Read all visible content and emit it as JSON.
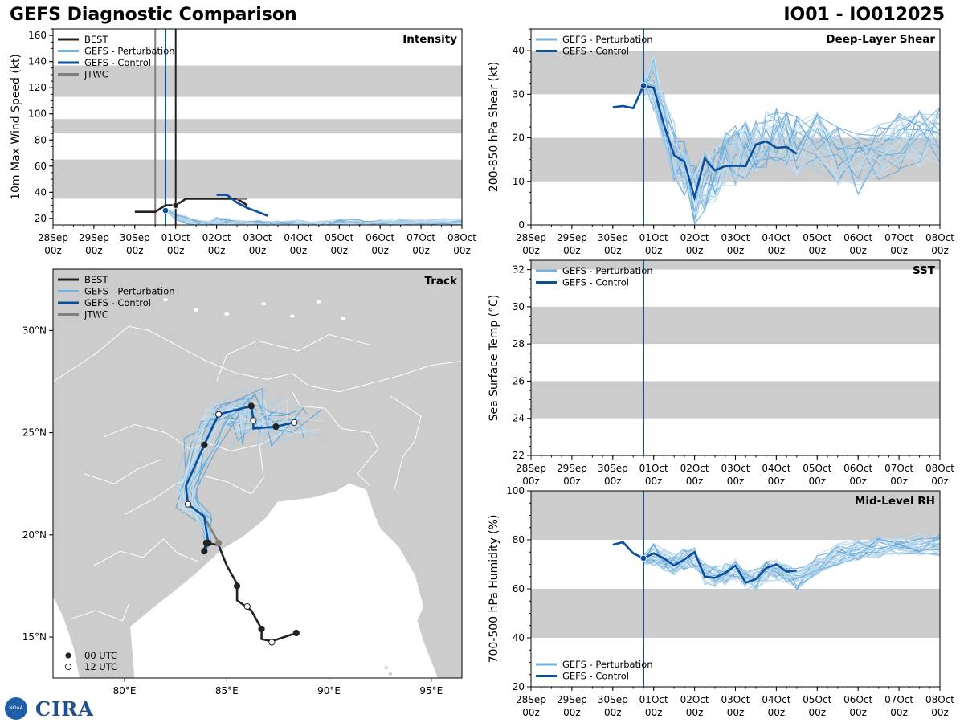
{
  "header": {
    "title": "GEFS Diagnostic Comparison",
    "storm": "IO01 - IO012025"
  },
  "logo": {
    "agency": "NOAA",
    "text": "CIRA"
  },
  "colors": {
    "best": "#222222",
    "pert": "#74b3dd",
    "control": "#0b4f9c",
    "jtwc": "#808080",
    "band": "#cccccc",
    "land": "#cccccc"
  },
  "time_axis": {
    "ticks": [
      "28Sep 00z",
      "29Sep 00z",
      "30Sep 00z",
      "01Oct 00z",
      "02Oct 00z",
      "03Oct 00z",
      "04Oct 00z",
      "05Oct 00z",
      "06Oct 00z",
      "07Oct 00z",
      "08Oct 00z"
    ],
    "marker_day": 2.75
  },
  "legend_labels": {
    "best": "BEST",
    "pert": "GEFS - Perturbation",
    "control": "GEFS - Control",
    "jtwc": "JTWC",
    "utc00": "00 UTC",
    "utc12": "12 UTC"
  },
  "chart_data": [
    {
      "id": "intensity",
      "type": "line",
      "title": "Intensity",
      "ylabel": "10m Max Wind Speed (kt)",
      "ylim": [
        15,
        165
      ],
      "yticks": [
        20,
        40,
        60,
        80,
        100,
        120,
        140,
        160
      ],
      "bands": [
        [
          35,
          65
        ],
        [
          85,
          96
        ],
        [
          113,
          137
        ]
      ],
      "vlines": [
        2.5,
        2.75,
        3.0
      ],
      "series": [
        {
          "name": "BEST",
          "x": [
            2.0,
            2.25,
            2.5,
            2.75,
            3.0,
            3.25,
            3.5,
            3.75,
            4.0,
            4.25,
            4.5,
            4.75
          ],
          "y": [
            25,
            25,
            25,
            30,
            30,
            35,
            35,
            35,
            35,
            35,
            35,
            30
          ]
        },
        {
          "name": "GEFS - Control",
          "x": [
            4.0,
            4.25,
            4.5,
            4.75,
            5.0,
            5.25
          ],
          "y": [
            38,
            38,
            32,
            28,
            25,
            22
          ]
        },
        {
          "name": "JTWC",
          "x": [
            4.5,
            4.75
          ],
          "y": [
            35,
            35
          ]
        }
      ]
    },
    {
      "id": "shear",
      "type": "line",
      "title": "Deep-Layer Shear",
      "ylabel": "200-850 hPa Shear (kt)",
      "ylim": [
        0,
        45
      ],
      "yticks": [
        0,
        10,
        20,
        30,
        40
      ],
      "bands": [
        [
          10,
          20
        ],
        [
          30,
          40
        ]
      ],
      "vlines": [
        2.75
      ],
      "series": [
        {
          "name": "GEFS - Control",
          "x": [
            2.0,
            2.25,
            2.5,
            2.75,
            3.0,
            3.25,
            3.5,
            3.75,
            4.0,
            4.25,
            4.5,
            4.75,
            5.0,
            5.25,
            5.5,
            5.75,
            6.0,
            6.25,
            6.5
          ],
          "y": [
            27,
            27.3,
            26.8,
            32,
            31.5,
            23,
            16,
            14.5,
            6.3,
            15.2,
            12.5,
            13.5,
            13.6,
            13.5,
            18.5,
            19.2,
            17.7,
            17.9,
            16.3
          ]
        }
      ]
    },
    {
      "id": "sst",
      "type": "line",
      "title": "SST",
      "ylabel": "Sea Surface Temp (°C)",
      "ylim": [
        22,
        32.5
      ],
      "yticks": [
        22,
        24,
        26,
        28,
        30,
        32
      ],
      "bands": [
        [
          24,
          26
        ],
        [
          28,
          30
        ],
        [
          32,
          32.5
        ]
      ],
      "vlines": [
        2.75
      ],
      "series": []
    },
    {
      "id": "rh",
      "type": "line",
      "title": "Mid-Level RH",
      "ylabel": "700-500 hPa Humidity (%)",
      "ylim": [
        20,
        100
      ],
      "yticks": [
        20,
        40,
        60,
        80,
        100
      ],
      "bands": [
        [
          40,
          60
        ],
        [
          80,
          100
        ]
      ],
      "vlines": [
        2.75
      ],
      "series": [
        {
          "name": "GEFS - Control",
          "x": [
            2.0,
            2.25,
            2.5,
            2.75,
            3.0,
            3.25,
            3.5,
            3.75,
            4.0,
            4.25,
            4.5,
            4.75,
            5.0,
            5.25,
            5.5,
            5.75,
            6.0,
            6.25,
            6.5
          ],
          "y": [
            78,
            79,
            74.5,
            72.5,
            74.5,
            72.5,
            69.5,
            72,
            75,
            65,
            64.5,
            66.5,
            69.5,
            62.5,
            64,
            68.5,
            70,
            67,
            67.5
          ]
        }
      ]
    },
    {
      "id": "track",
      "type": "scatter",
      "title": "Track",
      "lon_range": [
        76.5,
        96.5
      ],
      "lat_range": [
        13,
        33
      ],
      "xticks": [
        80,
        85,
        90,
        95
      ],
      "xtick_labels": [
        "80°E",
        "85°E",
        "90°E",
        "95°E"
      ],
      "yticks": [
        15,
        20,
        25,
        30
      ],
      "ytick_labels": [
        "15°N",
        "20°N",
        "25°N",
        "30°N"
      ],
      "best_track": [
        [
          88.4,
          15.2
        ],
        [
          87.2,
          14.8
        ],
        [
          86.7,
          14.9
        ],
        [
          86.7,
          15.4
        ],
        [
          86.2,
          16.3
        ],
        [
          85.5,
          16.8
        ],
        [
          85.5,
          17.6
        ],
        [
          85.0,
          18.5
        ],
        [
          84.6,
          19.5
        ],
        [
          84.0,
          19.6
        ],
        [
          83.9,
          19.3
        ]
      ],
      "best_points_00": [
        [
          88.4,
          15.2
        ],
        [
          86.7,
          15.4
        ],
        [
          85.5,
          17.5
        ],
        [
          84.0,
          19.6
        ]
      ],
      "best_points_12": [
        [
          87.2,
          14.75
        ],
        [
          86.0,
          16.5
        ]
      ],
      "control_track": [
        [
          83.9,
          19.2
        ],
        [
          84.1,
          19.6
        ],
        [
          84.0,
          20.2
        ],
        [
          83.9,
          20.9
        ],
        [
          83.1,
          21.5
        ],
        [
          83.0,
          22.4
        ],
        [
          83.9,
          24.4
        ],
        [
          84.6,
          25.9
        ],
        [
          86.2,
          26.3
        ],
        [
          86.3,
          25.6
        ],
        [
          86.3,
          25.2
        ],
        [
          87.4,
          25.3
        ],
        [
          88.3,
          25.5
        ]
      ],
      "control_points_00": [
        [
          83.9,
          19.2
        ],
        [
          84.1,
          19.6
        ],
        [
          83.9,
          24.4
        ],
        [
          86.2,
          26.3
        ],
        [
          87.4,
          25.3
        ]
      ],
      "control_points_12": [
        [
          83.1,
          21.5
        ],
        [
          84.6,
          25.9
        ],
        [
          86.3,
          25.6
        ],
        [
          88.3,
          25.5
        ]
      ],
      "jtwc_track": [
        [
          84.6,
          19.6
        ],
        [
          84.0,
          20.7
        ]
      ],
      "jtwc_points": [
        [
          84.6,
          19.6
        ]
      ]
    }
  ]
}
